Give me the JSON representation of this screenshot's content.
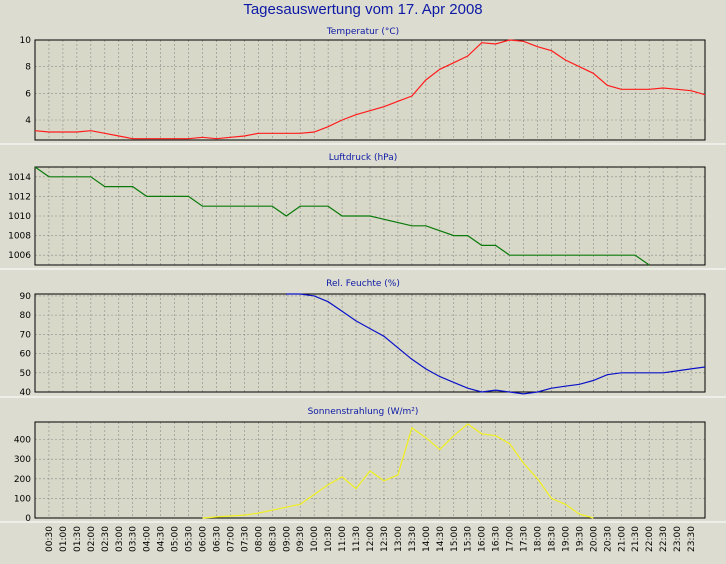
{
  "title": "Tagesauswertung vom 17. Apr 2008",
  "colors": {
    "background": "#dcdcd0",
    "plot_background": "#d8d8c8",
    "grid": "#8a8a8a",
    "title": "#0d1aa6"
  },
  "chart_data": [
    {
      "type": "line",
      "title": "Temperatur (°C)",
      "color": "#ff1c1c",
      "ylim": [
        2.5,
        10
      ],
      "yticks": [
        4,
        6,
        8,
        10
      ],
      "x": [
        0.0,
        0.5,
        1.0,
        1.5,
        2.0,
        2.5,
        3.0,
        3.5,
        4.0,
        4.5,
        5.0,
        5.5,
        6.0,
        6.5,
        7.0,
        7.5,
        8.0,
        8.5,
        9.0,
        9.5,
        10.0,
        10.5,
        11.0,
        11.5,
        12.0,
        12.5,
        13.0,
        13.5,
        14.0,
        14.5,
        15.0,
        15.5,
        16.0,
        16.5,
        17.0,
        17.5,
        18.0,
        18.5,
        19.0,
        19.5,
        20.0,
        20.5,
        21.0,
        21.5,
        22.0,
        22.5,
        23.0,
        23.5,
        24.0
      ],
      "values": [
        3.2,
        3.1,
        3.1,
        3.1,
        3.2,
        3.0,
        2.8,
        2.6,
        2.6,
        2.6,
        2.6,
        2.6,
        2.7,
        2.6,
        2.7,
        2.8,
        3.0,
        3.0,
        3.0,
        3.0,
        3.1,
        3.5,
        4.0,
        4.4,
        4.7,
        5.0,
        5.4,
        5.8,
        7.0,
        7.8,
        8.3,
        8.8,
        9.8,
        9.7,
        10.0,
        9.9,
        9.5,
        9.2,
        8.5,
        8.0,
        7.5,
        6.6,
        6.3,
        6.3,
        6.3,
        6.4,
        6.3,
        6.2,
        5.9
      ]
    },
    {
      "type": "line",
      "title": "Luftdruck (hPa)",
      "color": "#0a7a0a",
      "ylim": [
        1005,
        1015
      ],
      "yticks": [
        1006,
        1008,
        1010,
        1012,
        1014
      ],
      "x": [
        0.0,
        0.5,
        1.0,
        2.0,
        2.5,
        3.5,
        4.0,
        5.0,
        5.5,
        6.0,
        6.5,
        7.0,
        8.5,
        9.0,
        9.5,
        10.0,
        10.5,
        11.0,
        12.0,
        13.5,
        14.0,
        15.0,
        15.5,
        16.0,
        16.5,
        17.0,
        17.5,
        20.5,
        21.5,
        22.0
      ],
      "values": [
        1015,
        1014,
        1014,
        1014,
        1013,
        1013,
        1012,
        1012,
        1012,
        1011,
        1011,
        1011,
        1011,
        1010,
        1011,
        1011,
        1011,
        1010,
        1010,
        1009,
        1009,
        1008,
        1008,
        1007,
        1007,
        1006,
        1006,
        1006,
        1006,
        1005
      ]
    },
    {
      "type": "line",
      "title": "Rel. Feuchte (%)",
      "color": "#0a12c8",
      "ylim": [
        40,
        91
      ],
      "yticks": [
        40,
        50,
        60,
        70,
        80,
        90
      ],
      "x": [
        9.0,
        9.5,
        10.0,
        10.5,
        11.0,
        11.5,
        12.0,
        12.5,
        13.0,
        13.5,
        14.0,
        14.5,
        15.0,
        15.5,
        16.0,
        16.5,
        17.0,
        17.5,
        18.0,
        18.5,
        19.0,
        19.5,
        20.0,
        20.5,
        21.0,
        21.5,
        22.0,
        22.5,
        23.0,
        23.5,
        24.0
      ],
      "values": [
        91,
        91,
        90,
        87,
        82,
        77,
        73,
        69,
        63,
        57,
        52,
        48,
        45,
        42,
        40,
        41,
        40,
        39,
        40,
        42,
        43,
        44,
        46,
        49,
        50,
        50,
        50,
        50,
        51,
        52,
        53
      ]
    },
    {
      "type": "line",
      "title": "Sonnenstrahlung (W/m²)",
      "color": "#f0f020",
      "ylim": [
        0,
        490
      ],
      "yticks": [
        0,
        100,
        200,
        300,
        400
      ],
      "x": [
        6.0,
        6.5,
        7.0,
        7.5,
        8.0,
        8.5,
        9.0,
        9.5,
        10.0,
        10.5,
        11.0,
        11.5,
        12.0,
        12.5,
        13.0,
        13.5,
        14.0,
        14.5,
        15.0,
        15.5,
        16.0,
        16.5,
        17.0,
        17.5,
        18.0,
        18.5,
        19.0,
        19.5,
        20.0
      ],
      "values": [
        0,
        5,
        10,
        15,
        25,
        40,
        55,
        70,
        120,
        170,
        210,
        150,
        240,
        190,
        220,
        460,
        410,
        350,
        420,
        480,
        430,
        420,
        380,
        280,
        200,
        100,
        70,
        20,
        0
      ]
    }
  ],
  "x_tick_labels": [
    "00:30",
    "01:00",
    "01:30",
    "02:00",
    "02:30",
    "03:00",
    "03:30",
    "04:00",
    "04:30",
    "05:00",
    "05:30",
    "06:00",
    "06:30",
    "07:00",
    "07:30",
    "08:00",
    "08:30",
    "09:00",
    "09:30",
    "10:00",
    "10:30",
    "11:00",
    "11:30",
    "12:00",
    "12:30",
    "13:00",
    "13:30",
    "14:00",
    "14:30",
    "15:00",
    "15:30",
    "16:00",
    "16:30",
    "17:00",
    "17:30",
    "18:00",
    "18:30",
    "19:00",
    "19:30",
    "20:00",
    "20:30",
    "21:00",
    "21:30",
    "22:00",
    "22:30",
    "23:00",
    "23:30"
  ]
}
